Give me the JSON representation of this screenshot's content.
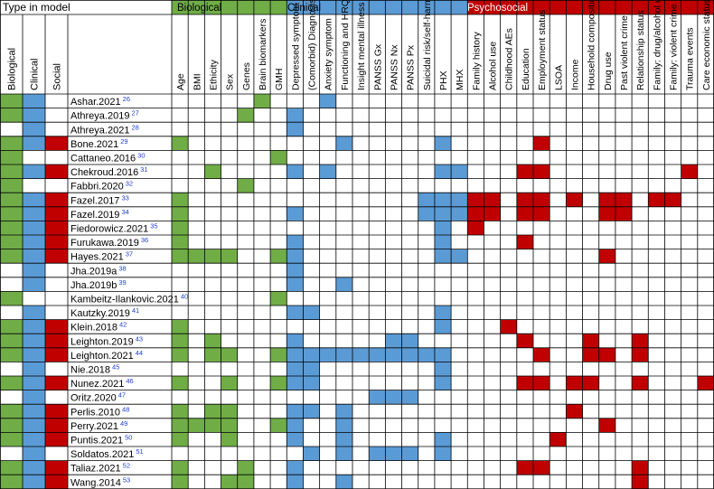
{
  "header": {
    "type_in_model": "Type in model",
    "group_biological": "Biological",
    "group_clinical": "Clinical",
    "group_psychosocial": "Psychosocial"
  },
  "type_columns": [
    "Biological",
    "Clinical",
    "Social"
  ],
  "feature_columns": [
    "Age",
    "BMI",
    "Ethicity",
    "Sex",
    "Genes",
    "Brain biomarkers",
    "GMH",
    "Depressed symptom",
    "(Comorbid) Diagnosis",
    "Anxiety symptom",
    "Functioning and HRQOL",
    "Insight mental illness",
    "PANSS Gx",
    "PANSS Nx",
    "PANSS Px",
    "Suicidal risk/self-harm",
    "PHX",
    "MHX",
    "Family history",
    "Alcohol use",
    "Childhood AEs",
    "Education",
    "Employment status",
    "LSOA",
    "Income",
    "Household composition",
    "Drug use",
    "Past violent crime",
    "Relationship status",
    "Family: drug/alcohol use",
    "Family: violent crime",
    "Trauma events",
    "Care economic status"
  ],
  "feature_groups": [
    "B",
    "B",
    "B",
    "B",
    "B",
    "B",
    "B",
    "C",
    "C",
    "C",
    "C",
    "C",
    "C",
    "C",
    "C",
    "C",
    "C",
    "C",
    "P",
    "P",
    "P",
    "P",
    "P",
    "P",
    "P",
    "P",
    "P",
    "P",
    "P",
    "P",
    "P",
    "P",
    "P"
  ],
  "colors": {
    "biological": "#70ad47",
    "clinical": "#5b9bd5",
    "psychosocial": "#c00000",
    "grid": "#000000"
  },
  "studies": [
    {
      "name": "Ashar.2021",
      "ref": "26",
      "types": "BC-",
      "features": [
        5,
        9
      ]
    },
    {
      "name": "Athreya.2019",
      "ref": "27",
      "types": "BC-",
      "features": [
        4,
        7
      ]
    },
    {
      "name": "Athreya.2021",
      "ref": "28",
      "types": "-C-",
      "features": [
        7
      ]
    },
    {
      "name": "Bone.2021",
      "ref": "29",
      "types": "BCS",
      "features": [
        0,
        10,
        16,
        22
      ]
    },
    {
      "name": "Cattaneo.2016",
      "ref": "30",
      "types": "B--",
      "features": [
        6
      ]
    },
    {
      "name": "Chekroud.2016",
      "ref": "31",
      "types": "BCS",
      "features": [
        2,
        7,
        9,
        16,
        17,
        21,
        22,
        31
      ]
    },
    {
      "name": "Fabbri.2020",
      "ref": "32",
      "types": "B--",
      "features": [
        4
      ]
    },
    {
      "name": "Fazel.2017",
      "ref": "33",
      "types": "BCS",
      "features": [
        0,
        15,
        16,
        17,
        18,
        19,
        21,
        22,
        24,
        26,
        27,
        29,
        30
      ]
    },
    {
      "name": "Fazel.2019",
      "ref": "34",
      "types": "BCS",
      "features": [
        0,
        7,
        15,
        16,
        17,
        18,
        19,
        21,
        22,
        26,
        27
      ]
    },
    {
      "name": "Fiedorowicz.2021",
      "ref": "35",
      "types": "BCS",
      "features": [
        0,
        16,
        18
      ]
    },
    {
      "name": "Furukawa.2019",
      "ref": "36",
      "types": "BCS",
      "features": [
        0,
        7,
        16,
        21
      ]
    },
    {
      "name": "Hayes.2021",
      "ref": "37",
      "types": "BCS",
      "features": [
        0,
        1,
        2,
        3,
        6,
        7,
        16,
        17,
        26
      ]
    },
    {
      "name": "Jha.2019a",
      "ref": "38",
      "types": "-C-",
      "features": [
        7
      ]
    },
    {
      "name": "Jha.2019b",
      "ref": "39",
      "types": "-C-",
      "features": [
        7,
        10
      ]
    },
    {
      "name": "Kambeitz-Ilankovic.2021",
      "ref": "40",
      "types": "B--",
      "features": [
        6
      ]
    },
    {
      "name": "Kautzky.2019",
      "ref": "41",
      "types": "-C-",
      "features": [
        7,
        8,
        16
      ]
    },
    {
      "name": "Klein.2018",
      "ref": "42",
      "types": "BCS",
      "features": [
        0,
        16,
        20
      ]
    },
    {
      "name": "Leighton.2019",
      "ref": "43",
      "types": "BCS",
      "features": [
        0,
        2,
        7,
        13,
        14,
        21,
        25,
        28
      ]
    },
    {
      "name": "Leighton.2021",
      "ref": "44",
      "types": "BCS",
      "features": [
        0,
        2,
        3,
        6,
        7,
        8,
        9,
        10,
        11,
        12,
        13,
        14,
        15,
        16,
        22,
        25,
        26,
        28
      ]
    },
    {
      "name": "Nie.2018",
      "ref": "45",
      "types": "-C-",
      "features": [
        7,
        8,
        16
      ]
    },
    {
      "name": "Nunez.2021",
      "ref": "46",
      "types": "BCS",
      "features": [
        0,
        3,
        6,
        7,
        8,
        16,
        21,
        22,
        24,
        25,
        28,
        32
      ]
    },
    {
      "name": "Oritz.2020",
      "ref": "47",
      "types": "-C-",
      "features": [
        12,
        13,
        14
      ]
    },
    {
      "name": "Perlis.2010",
      "ref": "48",
      "types": "BCS",
      "features": [
        0,
        2,
        3,
        7,
        8,
        10,
        24
      ]
    },
    {
      "name": "Perry.2021",
      "ref": "49",
      "types": "BCS",
      "features": [
        0,
        1,
        2,
        3,
        6,
        7,
        10,
        26
      ]
    },
    {
      "name": "Puntis.2021",
      "ref": "50",
      "types": "BCS",
      "features": [
        0,
        3,
        7,
        10,
        16,
        23
      ]
    },
    {
      "name": "Soldatos.2021",
      "ref": "51",
      "types": "-C-",
      "features": [
        8,
        10,
        12,
        13,
        14,
        16
      ]
    },
    {
      "name": "Taliaz.2021",
      "ref": "52",
      "types": "BCS",
      "features": [
        0,
        4,
        7,
        21,
        22,
        28
      ]
    },
    {
      "name": "Wang.2014",
      "ref": "53",
      "types": "BCS",
      "features": [
        0,
        3,
        4,
        7,
        10,
        28
      ]
    }
  ]
}
